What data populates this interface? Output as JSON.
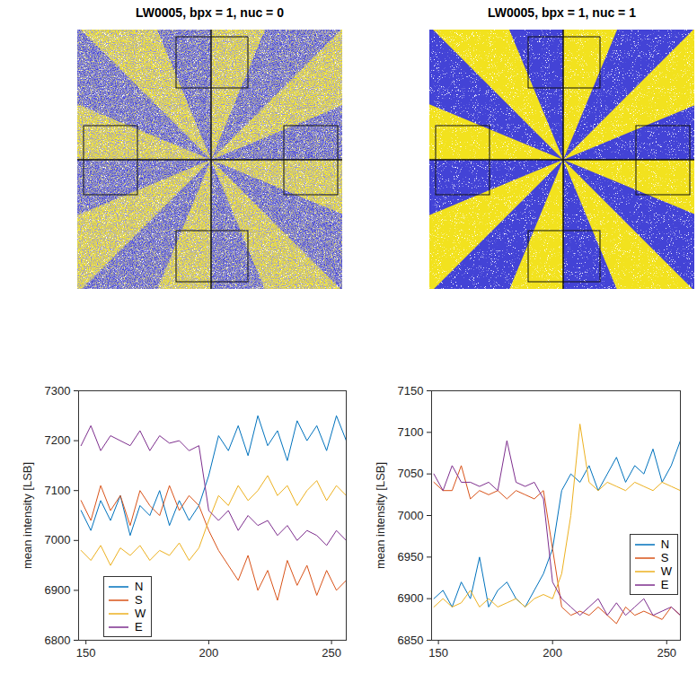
{
  "chart_data": [
    {
      "type": "image",
      "title": "LW0005, bpx = 1, nuc = 0"
    },
    {
      "type": "image",
      "title": "LW0005, bpx = 1, nuc = 1"
    },
    {
      "type": "line",
      "y_label": "mean intensity [LSB]",
      "x": [
        148,
        152,
        156,
        160,
        164,
        168,
        172,
        176,
        180,
        184,
        188,
        192,
        196,
        200,
        204,
        208,
        212,
        216,
        220,
        224,
        228,
        232,
        236,
        240,
        244,
        248,
        252,
        256
      ],
      "xlim": [
        147,
        256
      ],
      "xticks": [
        150,
        200,
        250
      ],
      "ylim": [
        6800,
        7300
      ],
      "yticks": [
        6800,
        6900,
        7000,
        7100,
        7200,
        7300
      ],
      "legend": "lower left",
      "series": [
        {
          "name": "N",
          "color": "#0072bd",
          "values": [
            7060,
            7020,
            7080,
            7040,
            7090,
            7010,
            7070,
            7050,
            7100,
            7030,
            7080,
            7040,
            7070,
            7130,
            7210,
            7180,
            7230,
            7170,
            7250,
            7190,
            7220,
            7160,
            7240,
            7200,
            7230,
            7180,
            7250,
            7200
          ]
        },
        {
          "name": "S",
          "color": "#d95319",
          "values": [
            7080,
            7040,
            7110,
            7060,
            7090,
            7030,
            7100,
            7070,
            7050,
            7110,
            7060,
            7090,
            7070,
            7020,
            6980,
            6950,
            6920,
            6970,
            6900,
            6940,
            6880,
            6960,
            6910,
            6950,
            6890,
            6940,
            6900,
            6920
          ]
        },
        {
          "name": "W",
          "color": "#edb120",
          "values": [
            6980,
            6960,
            6990,
            6950,
            6985,
            6970,
            6990,
            6960,
            6980,
            6970,
            6995,
            6960,
            6985,
            7040,
            7090,
            7070,
            7110,
            7080,
            7100,
            7130,
            7090,
            7110,
            7070,
            7100,
            7120,
            7080,
            7110,
            7090
          ]
        },
        {
          "name": "E",
          "color": "#7e2f8e",
          "values": [
            7190,
            7230,
            7180,
            7210,
            7200,
            7190,
            7220,
            7180,
            7210,
            7195,
            7200,
            7180,
            7190,
            7060,
            7040,
            7060,
            7020,
            7050,
            7030,
            7040,
            7010,
            7030,
            7000,
            7020,
            7010,
            6990,
            7020,
            7000
          ]
        }
      ]
    },
    {
      "type": "line",
      "y_label": "mean intensity [LSB]",
      "x": [
        148,
        152,
        156,
        160,
        164,
        168,
        172,
        176,
        180,
        184,
        188,
        192,
        196,
        200,
        204,
        208,
        212,
        216,
        220,
        224,
        228,
        232,
        236,
        240,
        244,
        248,
        252,
        256
      ],
      "xlim": [
        147,
        256
      ],
      "xticks": [
        150,
        200,
        250
      ],
      "ylim": [
        6850,
        7150
      ],
      "yticks": [
        6850,
        6900,
        6950,
        7000,
        7050,
        7100,
        7150
      ],
      "legend": "lower right",
      "series": [
        {
          "name": "N",
          "color": "#0072bd",
          "values": [
            6900,
            6910,
            6890,
            6920,
            6900,
            6950,
            6890,
            6910,
            6920,
            6900,
            6890,
            6910,
            6930,
            6960,
            7030,
            7050,
            7040,
            7060,
            7030,
            7050,
            7070,
            7040,
            7060,
            7050,
            7080,
            7040,
            7060,
            7090
          ]
        },
        {
          "name": "S",
          "color": "#d95319",
          "values": [
            7040,
            7030,
            7030,
            7060,
            7020,
            7030,
            7025,
            7030,
            7020,
            7030,
            7025,
            7020,
            7030,
            6960,
            6890,
            6880,
            6885,
            6880,
            6890,
            6880,
            6870,
            6890,
            6880,
            6885,
            6880,
            6875,
            6890,
            6880
          ]
        },
        {
          "name": "W",
          "color": "#edb120",
          "values": [
            6890,
            6900,
            6890,
            6895,
            6910,
            6890,
            6900,
            6890,
            6895,
            6900,
            6890,
            6900,
            6905,
            6900,
            6930,
            7000,
            7110,
            7040,
            7030,
            7040,
            7035,
            7030,
            7040,
            7035,
            7030,
            7040,
            7035,
            7030
          ]
        },
        {
          "name": "E",
          "color": "#7e2f8e",
          "values": [
            7050,
            7030,
            7060,
            7040,
            7040,
            7035,
            7040,
            7030,
            7090,
            7040,
            7035,
            7040,
            7020,
            6920,
            6900,
            6890,
            6880,
            6890,
            6900,
            6880,
            6895,
            6880,
            6890,
            6900,
            6880,
            6885,
            6890,
            6880
          ]
        }
      ]
    }
  ]
}
